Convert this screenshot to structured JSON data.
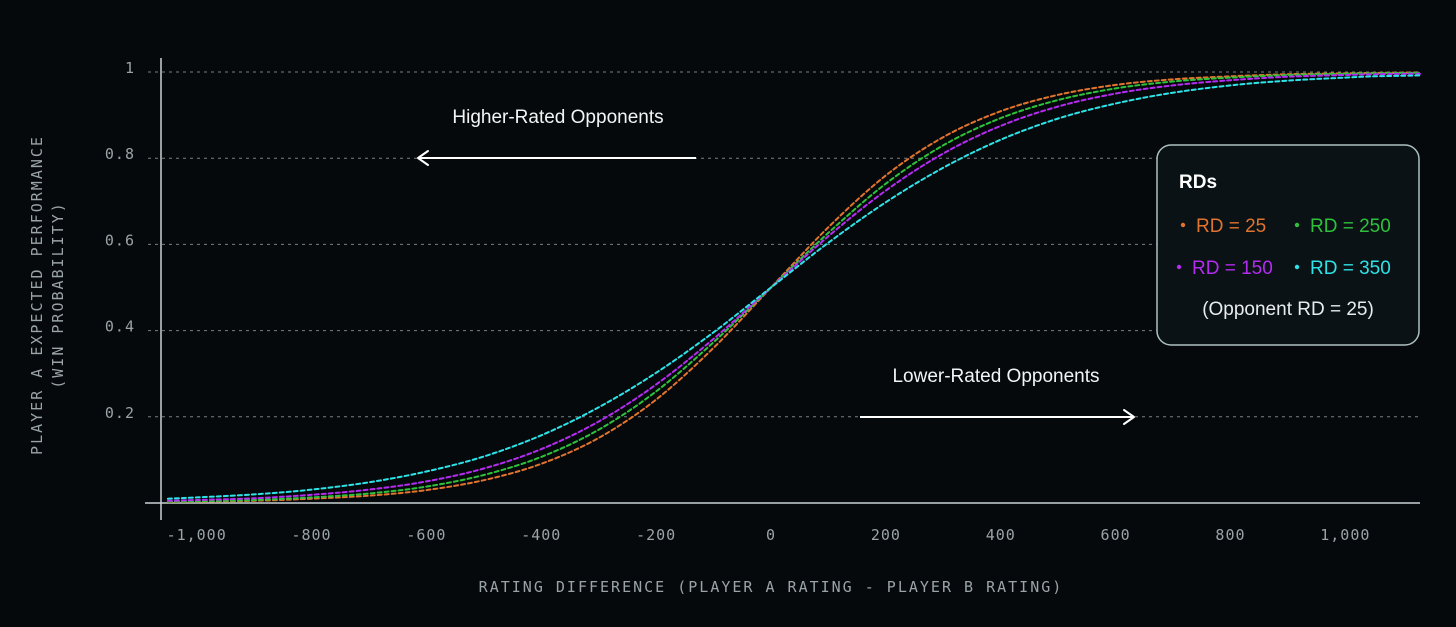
{
  "chart_data": {
    "type": "line",
    "xlabel": "RATING DIFFERENCE (PLAYER A RATING - PLAYER B RATING)",
    "ylabel": "PLAYER A EXPECTED PERFORMANCE",
    "ylabel2": "(WIN PROBABILITY)",
    "xlim": [
      -1130,
      1130
    ],
    "ylim": [
      0,
      1
    ],
    "x_ticks": [
      -1000,
      -800,
      -600,
      -400,
      -200,
      0,
      200,
      400,
      600,
      800,
      1000
    ],
    "x_tick_labels": [
      "-1,000",
      "-800",
      "-600",
      "-400",
      "-200",
      "0",
      "200",
      "400",
      "600",
      "800",
      "1,000"
    ],
    "y_ticks": [
      0.2,
      0.4,
      0.6,
      0.8,
      1
    ],
    "y_tick_labels": [
      "0.2",
      "0.4",
      "0.6",
      "0.8",
      "1"
    ],
    "grid": "horizontal-dashed",
    "x": [
      -1050,
      -1000,
      -900,
      -800,
      -700,
      -600,
      -500,
      -400,
      -300,
      -200,
      -100,
      0,
      100,
      200,
      300,
      400,
      500,
      600,
      700,
      800,
      900,
      1000,
      1050,
      1130
    ],
    "series": [
      {
        "name": "RD = 25",
        "color": "#e0732e",
        "values": [
          0.002,
          0.003,
          0.005,
          0.01,
          0.017,
          0.03,
          0.053,
          0.091,
          0.151,
          0.24,
          0.36,
          0.5,
          0.64,
          0.76,
          0.849,
          0.909,
          0.947,
          0.97,
          0.983,
          0.99,
          0.995,
          0.997,
          0.998,
          0.999
        ]
      },
      {
        "name": "RD = 250",
        "color": "#2fc13c",
        "values": [
          0.003,
          0.004,
          0.007,
          0.013,
          0.022,
          0.038,
          0.065,
          0.107,
          0.17,
          0.259,
          0.373,
          0.5,
          0.627,
          0.741,
          0.83,
          0.893,
          0.935,
          0.962,
          0.978,
          0.987,
          0.993,
          0.996,
          0.997,
          0.998
        ]
      },
      {
        "name": "RD = 150",
        "color": "#b32cf0",
        "values": [
          0.005,
          0.007,
          0.011,
          0.019,
          0.031,
          0.05,
          0.08,
          0.125,
          0.189,
          0.275,
          0.381,
          0.5,
          0.619,
          0.725,
          0.811,
          0.875,
          0.92,
          0.95,
          0.969,
          0.981,
          0.989,
          0.993,
          0.995,
          0.996
        ]
      },
      {
        "name": "RD = 350",
        "color": "#2ee3e8",
        "values": [
          0.01,
          0.013,
          0.02,
          0.031,
          0.048,
          0.073,
          0.108,
          0.157,
          0.222,
          0.302,
          0.396,
          0.5,
          0.604,
          0.698,
          0.778,
          0.843,
          0.892,
          0.927,
          0.952,
          0.969,
          0.98,
          0.987,
          0.99,
          0.992
        ]
      }
    ],
    "annotations": [
      {
        "text": "Higher-Rated Opponents",
        "direction": "left"
      },
      {
        "text": "Lower-Rated Opponents",
        "direction": "right"
      }
    ],
    "legend": {
      "title": "RDs",
      "position": "right",
      "note": "(Opponent RD = 25)"
    }
  }
}
